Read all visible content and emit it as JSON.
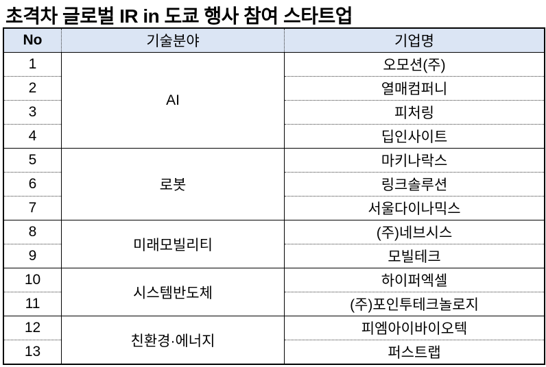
{
  "title": "초격차 글로벌 IR in 도쿄 행사 참여 스타트업",
  "headers": {
    "no": "No",
    "field": "기술분야",
    "company": "기업명"
  },
  "groups": [
    {
      "field": "AI",
      "rows": [
        {
          "no": "1",
          "company": "오모션(주)"
        },
        {
          "no": "2",
          "company": "열매컴퍼니"
        },
        {
          "no": "3",
          "company": "피처링"
        },
        {
          "no": "4",
          "company": "딥인사이트"
        }
      ]
    },
    {
      "field": "로봇",
      "rows": [
        {
          "no": "5",
          "company": "마키나락스"
        },
        {
          "no": "6",
          "company": "링크솔루션"
        },
        {
          "no": "7",
          "company": "서울다이나믹스"
        }
      ]
    },
    {
      "field": "미래모빌리티",
      "rows": [
        {
          "no": "8",
          "company": "(주)네브시스"
        },
        {
          "no": "9",
          "company": "모빌테크"
        }
      ]
    },
    {
      "field": "시스템반도체",
      "rows": [
        {
          "no": "10",
          "company": "하이퍼엑셀"
        },
        {
          "no": "11",
          "company": "(주)포인투테크놀로지"
        }
      ]
    },
    {
      "field": "친환경·에너지",
      "rows": [
        {
          "no": "12",
          "company": "피엠아이바이오텍"
        },
        {
          "no": "13",
          "company": "퍼스트랩"
        }
      ]
    }
  ]
}
